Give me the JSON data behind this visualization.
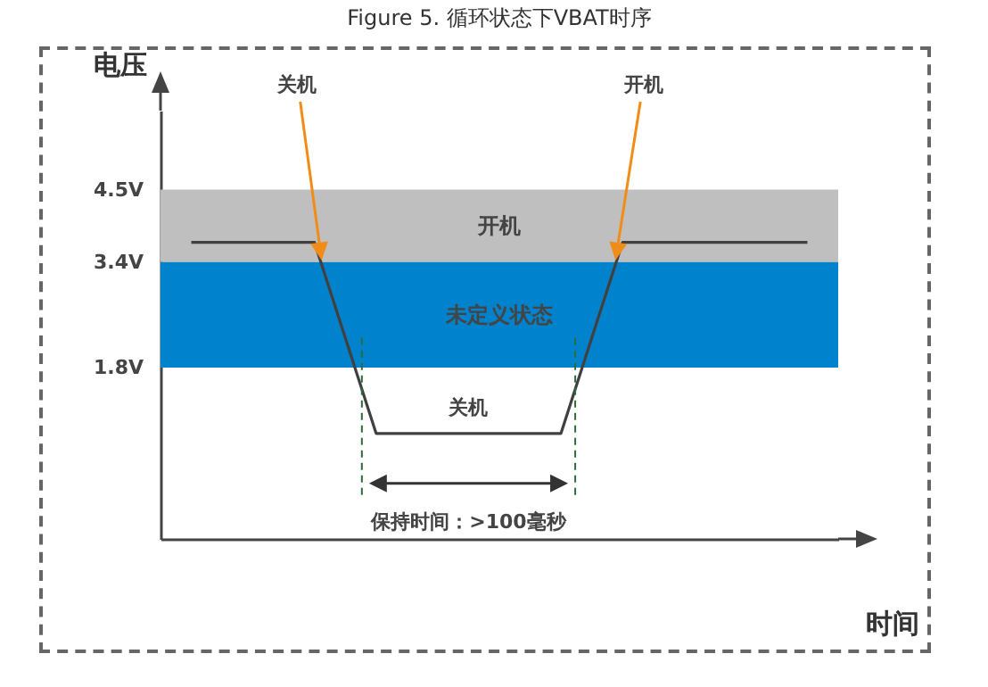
{
  "chart_data": {
    "type": "line",
    "title": "Figure 5. 循环状态下VBAT时序",
    "xlabel": "时间",
    "ylabel": "电压",
    "categories": [
      null,
      null,
      null,
      null,
      null,
      null,
      null,
      null,
      null,
      null,
      null
    ],
    "series": [
      {
        "color": "#404040",
        "values": [
          3.7,
          3.7,
          3.7,
          0.8,
          0.8,
          0.8,
          0.8,
          3.7,
          3.7,
          3.7,
          3.7
        ]
      }
    ],
    "ylim": [
      -0.8,
      5.7
    ],
    "yticks": [
      {
        "value": 1.8,
        "label": "1.8V"
      },
      {
        "value": 3.4,
        "label": "3.4V"
      },
      {
        "value": 4.5,
        "label": "4.5V"
      }
    ],
    "bands": [
      {
        "axis": "y",
        "from": 3.4,
        "to": 4.5,
        "label": "开机",
        "color": "#bfbfbf"
      },
      {
        "axis": "y",
        "from": 1.8,
        "to": 3.4,
        "label": "未定义状态",
        "color": "#0083cc"
      }
    ],
    "annotations": [
      "关机",
      "开机",
      "关机",
      "保持时间：>100毫秒"
    ],
    "grid": false,
    "marker": "none",
    "line_style": "solid"
  }
}
